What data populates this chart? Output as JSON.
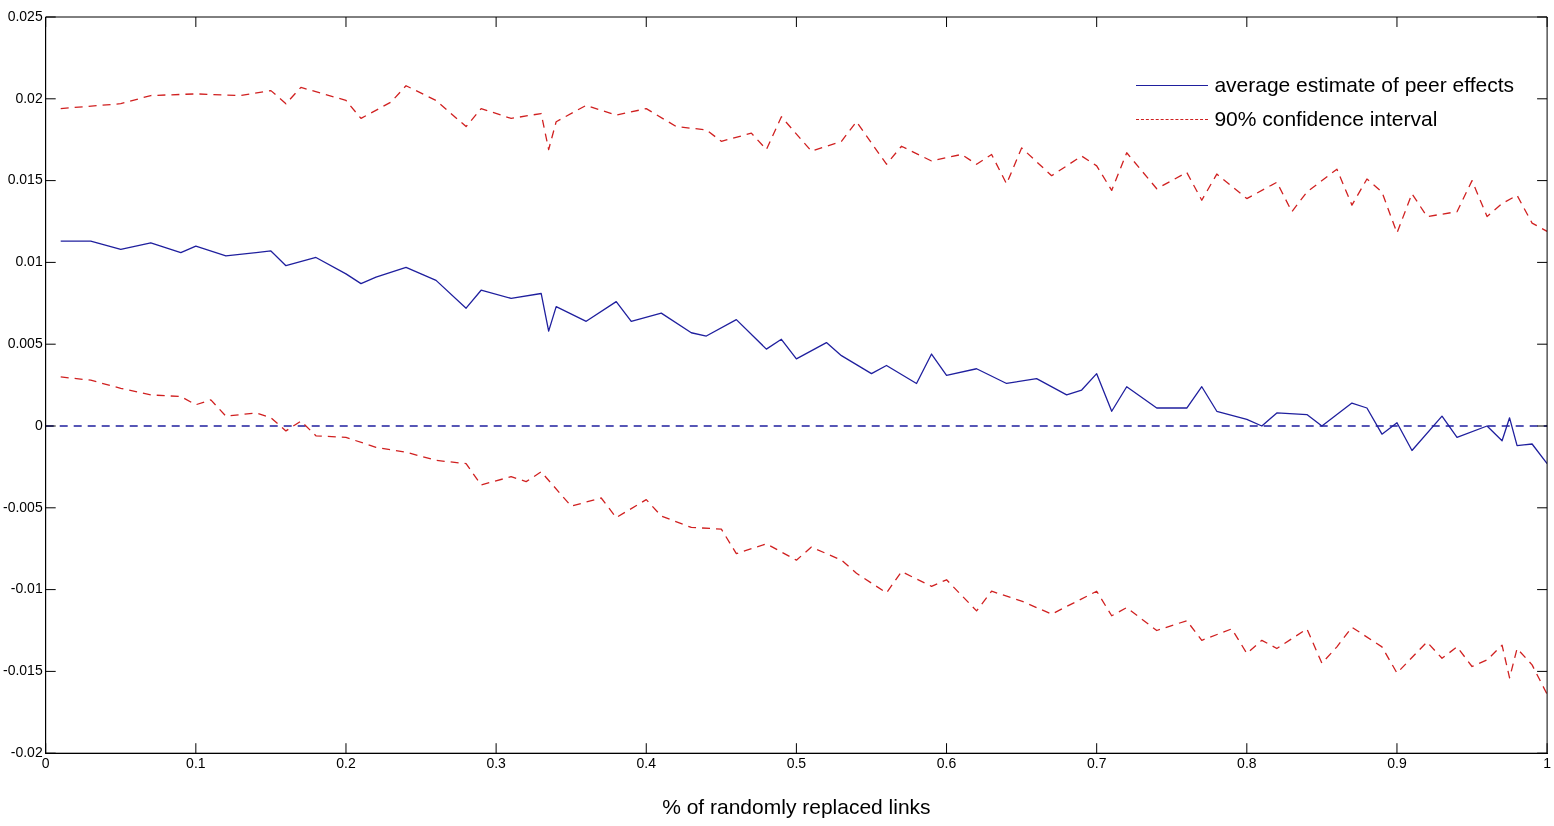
{
  "chart_data": {
    "type": "line",
    "xlabel": "% of randomly replaced links",
    "xlim": [
      0,
      1
    ],
    "xticks": [
      0,
      0.1,
      0.2,
      0.3,
      0.4,
      0.5,
      0.6,
      0.7,
      0.8,
      0.9,
      1
    ],
    "ylim": [
      -0.02,
      0.025
    ],
    "yticks": [
      -0.02,
      -0.015,
      -0.01,
      -0.005,
      0,
      0.005,
      0.01,
      0.015,
      0.02,
      0.025
    ],
    "grid": false,
    "legend": "top right",
    "marker": "none",
    "ref_lines": [
      {
        "axis": "y",
        "value": 0,
        "color": "#1f1f9e",
        "line_style": "dashed"
      }
    ],
    "series": [
      {
        "name": "average estimate of peer effects",
        "color": "#1f1f9e",
        "line_style": "solid",
        "x": [
          0.01,
          0.03,
          0.05,
          0.07,
          0.09,
          0.1,
          0.12,
          0.15,
          0.16,
          0.18,
          0.2,
          0.21,
          0.22,
          0.24,
          0.26,
          0.28,
          0.29,
          0.31,
          0.33,
          0.335,
          0.34,
          0.36,
          0.38,
          0.39,
          0.41,
          0.43,
          0.44,
          0.46,
          0.48,
          0.49,
          0.5,
          0.52,
          0.53,
          0.55,
          0.56,
          0.58,
          0.59,
          0.6,
          0.62,
          0.64,
          0.66,
          0.68,
          0.69,
          0.7,
          0.71,
          0.72,
          0.74,
          0.76,
          0.77,
          0.78,
          0.8,
          0.81,
          0.82,
          0.84,
          0.85,
          0.87,
          0.88,
          0.89,
          0.9,
          0.91,
          0.93,
          0.94,
          0.96,
          0.97,
          0.975,
          0.98,
          0.99,
          1.0
        ],
        "values": [
          0.0113,
          0.0113,
          0.0108,
          0.0112,
          0.0106,
          0.011,
          0.0104,
          0.0107,
          0.0098,
          0.0103,
          0.0093,
          0.0087,
          0.0091,
          0.0097,
          0.0089,
          0.0072,
          0.0083,
          0.0078,
          0.0081,
          0.0058,
          0.0073,
          0.0064,
          0.0076,
          0.0064,
          0.0069,
          0.0057,
          0.0055,
          0.0065,
          0.0047,
          0.0053,
          0.0041,
          0.0051,
          0.0043,
          0.0032,
          0.0037,
          0.0026,
          0.0044,
          0.0031,
          0.0035,
          0.0026,
          0.0029,
          0.0019,
          0.0022,
          0.0032,
          0.0009,
          0.0024,
          0.0011,
          0.0011,
          0.0024,
          0.0009,
          0.0004,
          0.0,
          0.0008,
          0.0007,
          0.0,
          0.0014,
          0.0011,
          -0.0005,
          0.0002,
          -0.0015,
          0.0006,
          -0.0007,
          0.0,
          -0.0009,
          0.0005,
          -0.0012,
          -0.0011,
          -0.0023
        ]
      },
      {
        "name": "90% confidence interval",
        "color": "#d02020",
        "line_style": "dashed",
        "x": [
          0.01,
          0.05,
          0.07,
          0.1,
          0.13,
          0.15,
          0.16,
          0.17,
          0.2,
          0.21,
          0.23,
          0.24,
          0.26,
          0.28,
          0.29,
          0.31,
          0.33,
          0.335,
          0.34,
          0.36,
          0.38,
          0.4,
          0.42,
          0.44,
          0.45,
          0.47,
          0.48,
          0.49,
          0.51,
          0.53,
          0.54,
          0.56,
          0.57,
          0.59,
          0.61,
          0.62,
          0.63,
          0.64,
          0.65,
          0.67,
          0.69,
          0.7,
          0.71,
          0.72,
          0.74,
          0.76,
          0.77,
          0.78,
          0.8,
          0.82,
          0.83,
          0.84,
          0.86,
          0.87,
          0.88,
          0.89,
          0.9,
          0.91,
          0.92,
          0.94,
          0.95,
          0.96,
          0.97,
          0.98,
          0.99,
          1.0
        ],
        "values": [
          0.0194,
          0.0197,
          0.0202,
          0.0203,
          0.0202,
          0.0205,
          0.0197,
          0.0207,
          0.0199,
          0.0188,
          0.0198,
          0.0208,
          0.0199,
          0.0183,
          0.0194,
          0.0188,
          0.0191,
          0.0169,
          0.0186,
          0.0196,
          0.019,
          0.0194,
          0.0183,
          0.0181,
          0.0174,
          0.0179,
          0.0169,
          0.0189,
          0.0168,
          0.0174,
          0.0186,
          0.016,
          0.0171,
          0.0162,
          0.0166,
          0.016,
          0.0166,
          0.0148,
          0.017,
          0.0153,
          0.0165,
          0.0159,
          0.0144,
          0.0167,
          0.0145,
          0.0155,
          0.0138,
          0.0154,
          0.0139,
          0.0149,
          0.0131,
          0.0143,
          0.0157,
          0.0135,
          0.0151,
          0.0143,
          0.0118,
          0.0142,
          0.0128,
          0.0131,
          0.015,
          0.0128,
          0.0136,
          0.0141,
          0.0124,
          0.0119
        ]
      },
      {
        "color": "#d02020",
        "line_style": "dashed",
        "x": [
          0.01,
          0.03,
          0.05,
          0.07,
          0.09,
          0.1,
          0.11,
          0.12,
          0.14,
          0.15,
          0.16,
          0.17,
          0.18,
          0.2,
          0.22,
          0.24,
          0.26,
          0.28,
          0.29,
          0.31,
          0.32,
          0.33,
          0.35,
          0.37,
          0.38,
          0.4,
          0.41,
          0.43,
          0.45,
          0.46,
          0.48,
          0.5,
          0.51,
          0.53,
          0.54,
          0.56,
          0.57,
          0.59,
          0.6,
          0.62,
          0.63,
          0.65,
          0.67,
          0.7,
          0.71,
          0.72,
          0.74,
          0.76,
          0.77,
          0.79,
          0.8,
          0.81,
          0.82,
          0.84,
          0.85,
          0.86,
          0.87,
          0.89,
          0.9,
          0.92,
          0.93,
          0.94,
          0.95,
          0.96,
          0.97,
          0.975,
          0.98,
          0.99,
          1.0
        ],
        "values": [
          0.003,
          0.0028,
          0.0023,
          0.0019,
          0.0018,
          0.0013,
          0.0016,
          0.0006,
          0.0008,
          0.0005,
          -0.0003,
          0.0003,
          -0.0006,
          -0.0007,
          -0.0013,
          -0.0016,
          -0.0021,
          -0.0023,
          -0.0036,
          -0.0031,
          -0.0034,
          -0.0028,
          -0.0049,
          -0.0044,
          -0.0056,
          -0.0045,
          -0.0055,
          -0.0062,
          -0.0063,
          -0.0078,
          -0.0072,
          -0.0082,
          -0.0074,
          -0.0082,
          -0.009,
          -0.0102,
          -0.0089,
          -0.0098,
          -0.0094,
          -0.0113,
          -0.0101,
          -0.0107,
          -0.0115,
          -0.0101,
          -0.0116,
          -0.0111,
          -0.0125,
          -0.0119,
          -0.0131,
          -0.0124,
          -0.0139,
          -0.0131,
          -0.0136,
          -0.0124,
          -0.0145,
          -0.0135,
          -0.0123,
          -0.0135,
          -0.0151,
          -0.0132,
          -0.0142,
          -0.0135,
          -0.0147,
          -0.0143,
          -0.0134,
          -0.0154,
          -0.0136,
          -0.0146,
          -0.0164
        ]
      }
    ]
  }
}
